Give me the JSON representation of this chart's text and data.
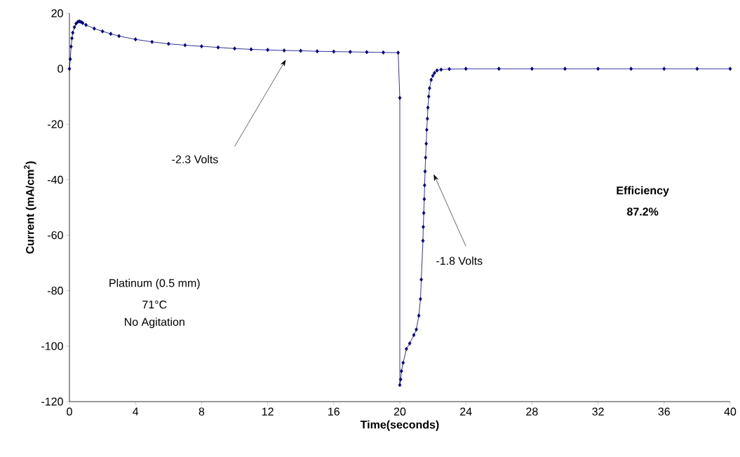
{
  "chart_data": {
    "type": "line",
    "xlabel": "Time(seconds)",
    "ylabel": "Current (mA/cm$^{2}$)",
    "xlim": [
      0,
      40
    ],
    "ylim": [
      -120,
      20
    ],
    "xticks": [
      0,
      4,
      8,
      12,
      16,
      20,
      24,
      28,
      32,
      36,
      40
    ],
    "yticks": [
      -120,
      -100,
      -80,
      -60,
      -40,
      -20,
      0,
      20
    ],
    "marker": "diamond",
    "line_style": "solid",
    "grid": false,
    "legend": false,
    "series": [
      {
        "color": "#000080",
        "x": [
          0,
          0.05,
          0.1,
          0.15,
          0.2,
          0.3,
          0.4,
          0.5,
          0.6,
          0.7,
          0.8,
          1,
          1.5,
          2,
          2.5,
          3,
          4,
          5,
          6,
          7,
          8,
          9,
          10,
          11,
          12,
          13,
          14,
          15,
          16,
          17,
          18,
          19,
          19.9,
          20,
          20,
          20.05,
          20.1,
          20.2,
          20.4,
          20.6,
          20.85,
          21.0,
          21.15,
          21.25,
          21.3,
          21.4,
          21.42,
          21.45,
          21.48,
          21.5,
          21.53,
          21.56,
          21.6,
          21.63,
          21.67,
          21.7,
          21.75,
          21.8,
          21.9,
          22.0,
          22.1,
          22.25,
          22.5,
          23,
          24,
          26,
          28,
          30,
          32,
          34,
          36,
          38,
          40
        ],
        "values": [
          0,
          3.5,
          8,
          11,
          13,
          15,
          16.3,
          16.9,
          17.1,
          16.9,
          16.5,
          15.8,
          14.5,
          13.5,
          12.6,
          11.8,
          10.6,
          9.7,
          9.0,
          8.5,
          8.1,
          7.7,
          7.3,
          7.0,
          6.8,
          6.6,
          6.5,
          6.3,
          6.2,
          6.1,
          6.0,
          5.9,
          5.8,
          -10.5,
          -114,
          -112,
          -109,
          -106,
          -101,
          -99,
          -96,
          -94,
          -89,
          -83,
          -76,
          -62,
          -57,
          -52,
          -47,
          -42,
          -37,
          -32,
          -27,
          -22,
          -18,
          -14,
          -10,
          -7,
          -4,
          -2.5,
          -1.5,
          -0.6,
          -0.3,
          -0.1,
          0,
          0,
          0,
          0,
          0,
          0,
          0,
          0,
          0
        ]
      }
    ],
    "annotations": [
      "-2.3 Volts",
      "-1.8 Volts",
      "Efficiency",
      "87.2%",
      "Platinum (0.5 mm)",
      "71°C",
      "No Agitation"
    ]
  }
}
